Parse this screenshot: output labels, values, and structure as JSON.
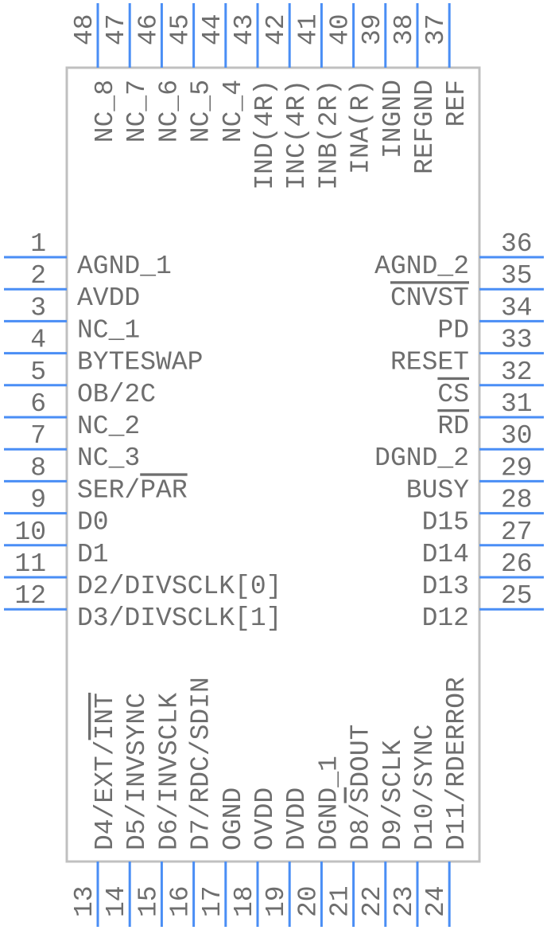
{
  "colors": {
    "pin": "#4a8ef5",
    "body": "#c0c0c0",
    "text": "#6e6e6e"
  },
  "pins": {
    "left": [
      {
        "number": "1",
        "label": "AGND_1"
      },
      {
        "number": "2",
        "label": "AVDD"
      },
      {
        "number": "3",
        "label": "NC_1"
      },
      {
        "number": "4",
        "label": "BYTESWAP"
      },
      {
        "number": "5",
        "label": "OB/2C"
      },
      {
        "number": "6",
        "label": "NC_2"
      },
      {
        "number": "7",
        "label": "NC_3"
      },
      {
        "number": "8",
        "label": "SER/PAR",
        "bar": "PAR"
      },
      {
        "number": "9",
        "label": "D0"
      },
      {
        "number": "10",
        "label": "D1"
      },
      {
        "number": "11",
        "label": "D2/DIVSCLK[0]"
      },
      {
        "number": "12",
        "label": "D3/DIVSCLK[1]"
      }
    ],
    "right": [
      {
        "number": "36",
        "label": "AGND_2"
      },
      {
        "number": "35",
        "label": "CNVST",
        "bar": "CNVST"
      },
      {
        "number": "34",
        "label": "PD"
      },
      {
        "number": "33",
        "label": "RESET"
      },
      {
        "number": "32",
        "label": "CS",
        "bar": "CS"
      },
      {
        "number": "31",
        "label": "RD",
        "bar": "RD"
      },
      {
        "number": "30",
        "label": "DGND_2"
      },
      {
        "number": "29",
        "label": "BUSY"
      },
      {
        "number": "28",
        "label": "D15"
      },
      {
        "number": "27",
        "label": "D14"
      },
      {
        "number": "26",
        "label": "D13"
      },
      {
        "number": "25",
        "label": "D12"
      }
    ],
    "top": [
      {
        "number": "48",
        "label": "NC_8"
      },
      {
        "number": "47",
        "label": "NC_7"
      },
      {
        "number": "46",
        "label": "NC_6"
      },
      {
        "number": "45",
        "label": "NC_5"
      },
      {
        "number": "44",
        "label": "NC_4"
      },
      {
        "number": "43",
        "label": "IND(4R)"
      },
      {
        "number": "42",
        "label": "INC(4R)"
      },
      {
        "number": "41",
        "label": "INB(2R)"
      },
      {
        "number": "40",
        "label": "INA(R)"
      },
      {
        "number": "39",
        "label": "INGND"
      },
      {
        "number": "38",
        "label": "REFGND"
      },
      {
        "number": "37",
        "label": "REF"
      }
    ],
    "bottom": [
      {
        "number": "13",
        "label": "D4/EXT/INT",
        "bar": "INT"
      },
      {
        "number": "14",
        "label": "D5/INVSYNC"
      },
      {
        "number": "15",
        "label": "D6/INVSCLK"
      },
      {
        "number": "16",
        "label": "D7/RDC/SDIN"
      },
      {
        "number": "17",
        "label": "OGND"
      },
      {
        "number": "18",
        "label": "OVDD"
      },
      {
        "number": "19",
        "label": "DVDD"
      },
      {
        "number": "20",
        "label": "DGND_1"
      },
      {
        "number": "21",
        "label": "D8/SDOUT",
        "bar": "S"
      },
      {
        "number": "22",
        "label": "D9/SCLK"
      },
      {
        "number": "23",
        "label": "D10/SYNC"
      },
      {
        "number": "24",
        "label": "D11/RDERROR"
      }
    ]
  }
}
